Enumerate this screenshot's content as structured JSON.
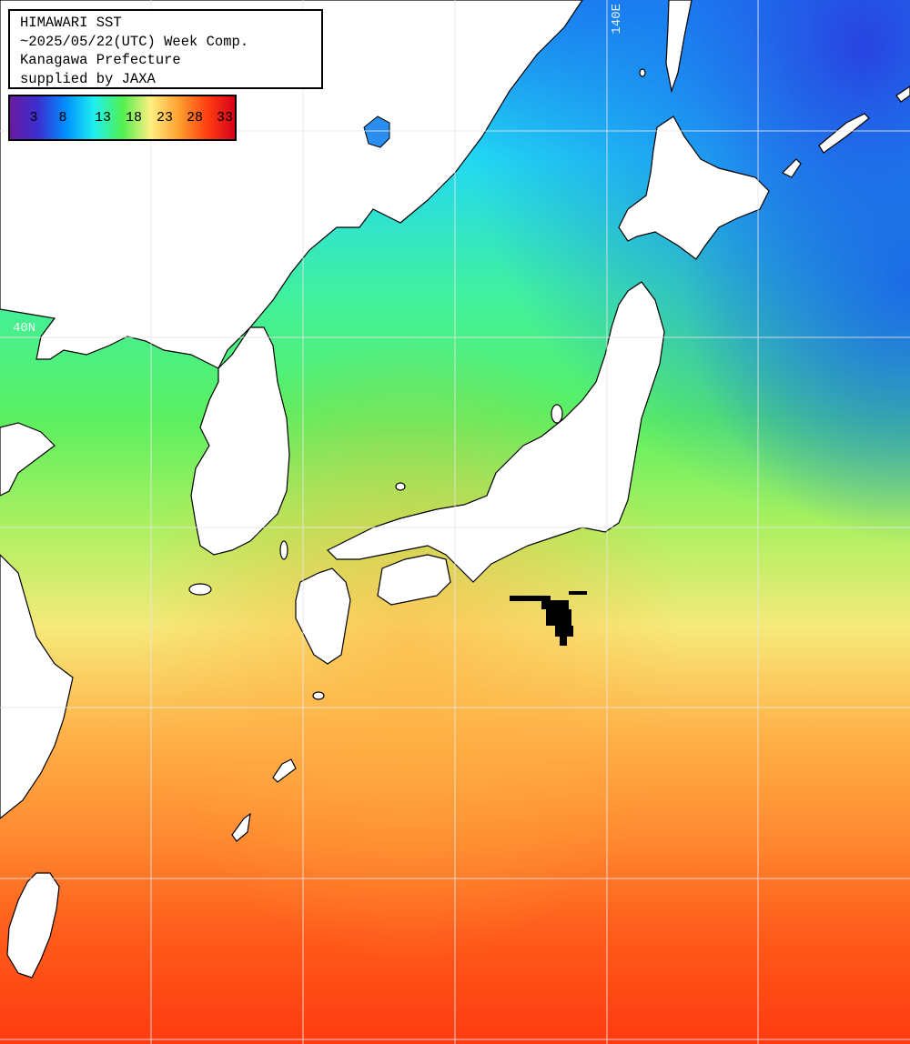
{
  "title": {
    "line1": "HIMAWARI SST",
    "line2": "~2025/05/22(UTC) Week Comp.",
    "line3": "Kanagawa Prefecture",
    "line4": "supplied by JAXA"
  },
  "colorbar": {
    "labels": [
      "3",
      "8",
      "13",
      "18",
      "23",
      "28",
      "33"
    ],
    "colors": [
      "#6a1aa0",
      "#3a2fd0",
      "#0090ff",
      "#20f0f0",
      "#50f050",
      "#fff080",
      "#ffa030",
      "#ff4010",
      "#d8001a"
    ]
  },
  "grid_labels": {
    "latitude": "40N",
    "longitude": "140E"
  },
  "colors": {
    "land": "#ffffff",
    "grid": "#e6e6e6",
    "coast": "#000000"
  }
}
